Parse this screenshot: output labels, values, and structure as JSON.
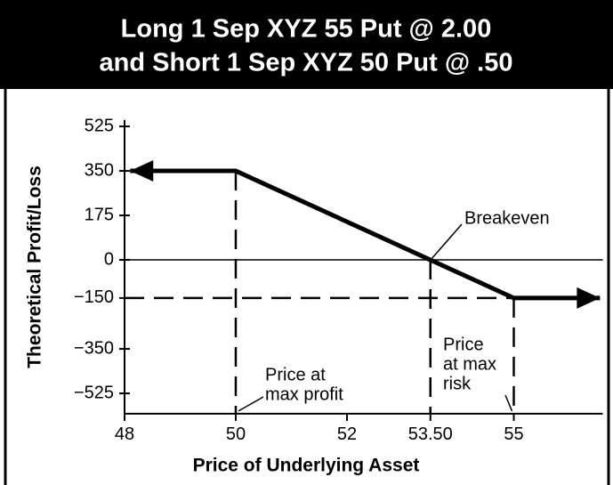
{
  "chart_data": {
    "type": "line",
    "title": [
      "Long 1 Sep XYZ 55 Put @ 2.00",
      "and Short 1 Sep XYZ 50 Put @ .50"
    ],
    "xlabel": "Price of Underlying Asset",
    "ylabel": "Theoretical Profit/Loss",
    "xlim": [
      48,
      56.6
    ],
    "ylim": [
      -605,
      550
    ],
    "xticks": [
      48,
      50,
      52,
      {
        "value": 53.5,
        "label": "53.50"
      },
      55
    ],
    "yticks": [
      525,
      350,
      175,
      0,
      {
        "value": -150,
        "label": "−150"
      },
      {
        "value": -350,
        "label": "−350"
      },
      {
        "value": -525,
        "label": "−525"
      }
    ],
    "series": [
      {
        "color": "#000000",
        "x": [
          48.1,
          50,
          55,
          56.55
        ],
        "values": [
          350,
          350,
          -150,
          -150
        ]
      }
    ],
    "dashed_x": [
      50,
      53.5,
      55
    ],
    "dashed_y": [
      -150
    ],
    "zero_line": true,
    "annotations": [
      {
        "lines": [
          "Breakeven"
        ]
      },
      {
        "lines": [
          "Price at",
          "max profit"
        ]
      },
      {
        "lines": [
          "Price",
          "at max",
          "risk"
        ]
      }
    ]
  }
}
